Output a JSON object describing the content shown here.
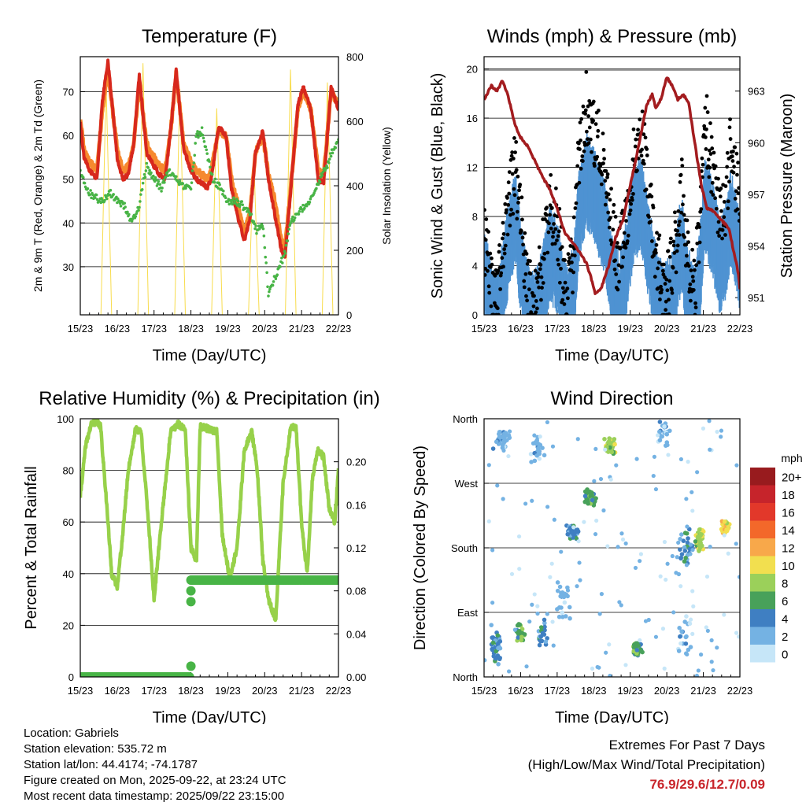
{
  "x_ticks": [
    "15/23",
    "16/23",
    "17/23",
    "18/23",
    "19/23",
    "20/23",
    "21/23",
    "22/23"
  ],
  "chart_data": [
    {
      "type": "line",
      "title": "Temperature (F)",
      "xlabel": "Time (Day/UTC)",
      "ylabel": "2m & 9m T (Red, Orange) & 2m Td (Green)",
      "ylabel_right": "Solar Insolation (Yellow)",
      "ylim": [
        19,
        78
      ],
      "yticks": [
        30,
        40,
        50,
        60,
        70
      ],
      "ylim_right": [
        0,
        800
      ],
      "yticks_right": [
        0,
        200,
        400,
        600,
        800
      ],
      "x_days": [
        0,
        7
      ],
      "grid": true,
      "colors": {
        "t2m": "#d7281d",
        "t9m": "#f6892e",
        "td": "#48b446",
        "solar": "#f8dc4c"
      },
      "series": [
        {
          "name": "2m T",
          "axis": "left",
          "x": [
            0.0,
            0.1,
            0.25,
            0.45,
            0.6,
            0.75,
            0.9,
            1.0,
            1.15,
            1.3,
            1.45,
            1.6,
            1.8,
            2.0,
            2.15,
            2.3,
            2.45,
            2.6,
            2.8,
            3.0,
            3.15,
            3.3,
            3.45,
            3.55,
            3.75,
            3.95,
            4.1,
            4.25,
            4.45,
            4.6,
            4.75,
            4.95,
            5.1,
            5.25,
            5.45,
            5.55,
            5.75,
            5.9,
            6.05,
            6.25,
            6.45,
            6.6,
            6.8,
            7.0
          ],
          "values": [
            63,
            55,
            52,
            50,
            68,
            77,
            64,
            55,
            50,
            51,
            58,
            74,
            56,
            53,
            51,
            50,
            61,
            75,
            57,
            52,
            50,
            49,
            48,
            50,
            62,
            60,
            48,
            42,
            36,
            41,
            56,
            61,
            50,
            43,
            34,
            32,
            52,
            67,
            71,
            66,
            50,
            49,
            71,
            66
          ]
        },
        {
          "name": "9m T",
          "axis": "left",
          "x": [
            0.0,
            0.1,
            0.25,
            0.45,
            0.6,
            0.75,
            0.9,
            1.0,
            1.15,
            1.3,
            1.45,
            1.6,
            1.8,
            2.0,
            2.15,
            2.3,
            2.45,
            2.6,
            2.8,
            3.0,
            3.15,
            3.3,
            3.45,
            3.55,
            3.75,
            3.95,
            4.1,
            4.25,
            4.45,
            4.6,
            4.75,
            4.95,
            5.1,
            5.25,
            5.45,
            5.55,
            5.75,
            5.9,
            6.05,
            6.25,
            6.45,
            6.6,
            6.8,
            7.0
          ],
          "values": [
            64,
            57,
            54,
            52,
            66,
            75,
            64,
            57,
            52,
            53,
            58,
            72,
            58,
            55,
            53,
            52,
            61,
            74,
            58,
            54,
            52,
            51,
            50,
            52,
            61,
            60,
            50,
            45,
            38,
            42,
            56,
            60,
            51,
            46,
            36,
            34,
            52,
            66,
            70,
            66,
            52,
            51,
            70,
            67
          ]
        },
        {
          "name": "2m Td",
          "axis": "left",
          "x": [
            0.0,
            0.15,
            0.35,
            0.6,
            0.8,
            1.0,
            1.2,
            1.4,
            1.6,
            1.8,
            2.0,
            2.2,
            2.4,
            2.6,
            2.8,
            3.0,
            3.15,
            3.3,
            3.45,
            3.6,
            3.8,
            4.0,
            4.2,
            4.4,
            4.6,
            4.8,
            4.95,
            5.1,
            5.25,
            5.4,
            5.55,
            5.7,
            5.9,
            6.1,
            6.3,
            6.5,
            6.7,
            6.85,
            7.0
          ],
          "values": [
            52,
            48,
            46,
            45,
            47,
            45,
            44,
            40,
            44,
            53,
            50,
            48,
            52,
            50,
            48,
            48,
            60,
            61,
            55,
            50,
            48,
            45,
            45,
            44,
            42,
            38,
            40,
            24,
            27,
            30,
            33,
            40,
            42,
            44,
            46,
            50,
            53,
            57,
            59
          ]
        },
        {
          "name": "Solar",
          "axis": "right",
          "x": [
            0.0,
            0.56,
            0.7,
            0.85,
            1.0,
            1.56,
            1.7,
            1.85,
            2.0,
            2.56,
            2.7,
            2.85,
            3.0,
            3.56,
            3.7,
            3.85,
            4.0,
            4.56,
            4.7,
            4.85,
            5.0,
            5.56,
            5.7,
            5.85,
            6.0,
            6.56,
            6.7,
            6.85,
            7.0
          ],
          "values": [
            0,
            0,
            720,
            0,
            0,
            0,
            780,
            0,
            0,
            0,
            700,
            0,
            0,
            0,
            640,
            0,
            0,
            0,
            500,
            0,
            0,
            0,
            760,
            0,
            0,
            0,
            720,
            0,
            0
          ]
        }
      ]
    },
    {
      "type": "line",
      "title": "Winds (mph) & Pressure (mb)",
      "xlabel": "Time (Day/UTC)",
      "ylabel": "Sonic Wind & Gust (Blue, Black)",
      "ylabel_right": "Station Pressure (Maroon)",
      "ylim": [
        0,
        21
      ],
      "yticks": [
        0,
        4,
        8,
        12,
        16,
        20
      ],
      "ylim_right": [
        950.0,
        965.0
      ],
      "yticks_right": [
        951,
        954,
        957,
        960,
        963
      ],
      "x_days": [
        0,
        7
      ],
      "grid": true,
      "colors": {
        "wind": "#4f93d2",
        "gust": "#000000",
        "pressure": "#a31c1f"
      },
      "series": [
        {
          "name": "Sonic Wind",
          "axis": "left",
          "x": [
            0.0,
            0.1,
            0.2,
            0.35,
            0.5,
            0.65,
            0.85,
            1.0,
            1.15,
            1.3,
            1.45,
            1.6,
            1.8,
            2.0,
            2.15,
            2.3,
            2.45,
            2.6,
            2.8,
            2.95,
            3.1,
            3.3,
            3.5,
            3.7,
            3.9,
            4.1,
            4.3,
            4.5,
            4.7,
            4.9,
            5.1,
            5.25,
            5.4,
            5.55,
            5.75,
            5.9,
            6.05,
            6.25,
            6.45,
            6.6,
            6.75,
            6.9,
            7.0
          ],
          "values": [
            4,
            3,
            1,
            0.5,
            3,
            6,
            9,
            5,
            2,
            0.5,
            1,
            3,
            6,
            5,
            2,
            1,
            3,
            9,
            12,
            11,
            10,
            8,
            4,
            2,
            5,
            9,
            10,
            6,
            3,
            1,
            2,
            4,
            7,
            3,
            1,
            4,
            10,
            8,
            5,
            6,
            9,
            7,
            5
          ]
        },
        {
          "name": "Gust",
          "axis": "left",
          "x": [
            0.0,
            0.1,
            0.2,
            0.35,
            0.5,
            0.65,
            0.85,
            1.0,
            1.15,
            1.3,
            1.45,
            1.6,
            1.8,
            2.0,
            2.15,
            2.3,
            2.45,
            2.6,
            2.8,
            2.95,
            3.1,
            3.3,
            3.5,
            3.7,
            3.9,
            4.1,
            4.3,
            4.5,
            4.7,
            4.9,
            5.1,
            5.25,
            5.4,
            5.55,
            5.75,
            5.9,
            6.05,
            6.25,
            6.45,
            6.6,
            6.75,
            6.9,
            7.0
          ],
          "values": [
            7,
            6,
            3,
            2,
            6,
            10,
            13,
            9,
            4,
            2,
            3,
            6,
            10,
            9,
            4,
            3,
            6,
            14,
            18,
            16,
            15,
            13,
            8,
            5,
            9,
            14,
            16,
            11,
            6,
            3,
            4,
            7,
            12,
            6,
            3,
            8,
            17,
            13,
            9,
            10,
            15,
            12,
            9
          ]
        },
        {
          "name": "Pressure",
          "axis": "right",
          "x": [
            0.0,
            0.2,
            0.35,
            0.5,
            0.65,
            0.85,
            1.0,
            1.2,
            1.4,
            1.6,
            1.8,
            2.0,
            2.2,
            2.5,
            2.8,
            2.95,
            3.05,
            3.2,
            3.4,
            3.6,
            3.8,
            4.0,
            4.2,
            4.45,
            4.6,
            4.7,
            4.85,
            5.0,
            5.15,
            5.3,
            5.45,
            5.6,
            5.8,
            5.95,
            6.1,
            6.3,
            6.5,
            6.7,
            6.85,
            6.95,
            7.0
          ],
          "values": [
            962.5,
            963.3,
            963.0,
            963.6,
            962.8,
            961.0,
            960.3,
            959.8,
            958.9,
            958.0,
            957.3,
            956.2,
            954.8,
            954.0,
            953.0,
            952.0,
            951.2,
            951.5,
            952.8,
            954.5,
            955.5,
            957.5,
            959.5,
            962.2,
            962.8,
            962.0,
            962.6,
            963.8,
            963.3,
            962.5,
            962.8,
            962.3,
            959.5,
            957.5,
            956.2,
            956.0,
            955.5,
            955.0,
            953.5,
            952.5,
            951.5
          ]
        }
      ]
    },
    {
      "type": "line",
      "title": "Relative Humidity (%) & Precipitation (in)",
      "xlabel": "Time (Day/UTC)",
      "ylabel": "Percent & Total Rainfall",
      "ylim": [
        0,
        100
      ],
      "yticks": [
        0,
        20,
        40,
        60,
        80,
        100
      ],
      "ylim_right": [
        0.0,
        0.24
      ],
      "yticks_right": [
        "0.00",
        "0.04",
        "0.08",
        "0.12",
        "0.16",
        "0.20"
      ],
      "x_days": [
        0,
        7
      ],
      "grid": true,
      "colors": {
        "rh": "#97d14a",
        "precip": "#48b446"
      },
      "series": [
        {
          "name": "RH",
          "axis": "left",
          "x": [
            0.0,
            0.15,
            0.3,
            0.45,
            0.55,
            0.7,
            0.85,
            1.0,
            1.15,
            1.3,
            1.5,
            1.65,
            1.85,
            2.0,
            2.2,
            2.45,
            2.65,
            2.85,
            3.0,
            3.15,
            3.25,
            3.5,
            3.7,
            3.85,
            4.05,
            4.25,
            4.45,
            4.65,
            4.8,
            4.95,
            5.1,
            5.3,
            5.5,
            5.7,
            5.85,
            6.0,
            6.15,
            6.3,
            6.45,
            6.6,
            6.75,
            6.9,
            7.0
          ],
          "values": [
            70,
            90,
            98,
            99,
            97,
            70,
            40,
            35,
            55,
            80,
            96,
            95,
            60,
            30,
            60,
            95,
            98,
            96,
            50,
            45,
            97,
            96,
            95,
            55,
            38,
            50,
            88,
            95,
            80,
            45,
            30,
            22,
            75,
            96,
            97,
            60,
            40,
            78,
            88,
            85,
            65,
            60,
            80
          ]
        },
        {
          "name": "Precip",
          "axis": "right",
          "x": [
            0.0,
            0.5,
            1.0,
            1.5,
            2.0,
            2.5,
            3.0,
            3.0,
            3.0,
            3.0,
            3.0,
            3.5,
            4.0,
            4.5,
            5.0,
            5.5,
            6.0,
            6.5,
            7.0
          ],
          "values": [
            0.0,
            0.0,
            0.0,
            0.0,
            0.0,
            0.0,
            0.0,
            0.01,
            0.07,
            0.08,
            0.09,
            0.09,
            0.09,
            0.09,
            0.09,
            0.09,
            0.09,
            0.09,
            0.09
          ]
        }
      ]
    },
    {
      "type": "scatter",
      "title": "Wind Direction",
      "xlabel": "Time (Day/UTC)",
      "ylabel": "Direction (Colored By Speed)",
      "ylim": [
        0,
        360
      ],
      "ytick_values": [
        0,
        90,
        180,
        270,
        360
      ],
      "ytick_labels": [
        "North",
        "East",
        "South",
        "West",
        "North"
      ],
      "x_days": [
        0,
        7
      ],
      "grid": true,
      "legend": {
        "title": "mph",
        "labels": [
          "20+",
          "18",
          "16",
          "14",
          "12",
          "10",
          "8",
          "6",
          "4",
          "2",
          "0"
        ],
        "colors": [
          "#981b1e",
          "#c6242b",
          "#e2382a",
          "#f3682a",
          "#f8a84a",
          "#f2df4f",
          "#9bd05a",
          "#48a15a",
          "#3f7fc2",
          "#74b2e3",
          "#c6e6f8"
        ]
      },
      "clusters": [
        {
          "x": 0.3,
          "deg": 40,
          "speed": 4,
          "n": 40,
          "xs": 0.25,
          "ds": 40
        },
        {
          "x": 0.45,
          "deg": 330,
          "speed": 2,
          "n": 35,
          "xs": 0.3,
          "ds": 25
        },
        {
          "x": 1.0,
          "deg": 60,
          "speed": 6,
          "n": 30,
          "xs": 0.15,
          "ds": 20
        },
        {
          "x": 1.6,
          "deg": 60,
          "speed": 4,
          "n": 20,
          "xs": 0.2,
          "ds": 25
        },
        {
          "x": 1.5,
          "deg": 320,
          "speed": 2,
          "n": 25,
          "xs": 0.3,
          "ds": 30
        },
        {
          "x": 2.4,
          "deg": 200,
          "speed": 4,
          "n": 45,
          "xs": 0.25,
          "ds": 15
        },
        {
          "x": 2.9,
          "deg": 250,
          "speed": 6,
          "n": 40,
          "xs": 0.2,
          "ds": 15
        },
        {
          "x": 3.45,
          "deg": 320,
          "speed": 8,
          "n": 55,
          "xs": 0.18,
          "ds": 15
        },
        {
          "x": 2.2,
          "deg": 110,
          "speed": 2,
          "n": 25,
          "xs": 0.3,
          "ds": 40
        },
        {
          "x": 4.2,
          "deg": 40,
          "speed": 6,
          "n": 50,
          "xs": 0.15,
          "ds": 15
        },
        {
          "x": 4.9,
          "deg": 340,
          "speed": 2,
          "n": 20,
          "xs": 0.3,
          "ds": 20
        },
        {
          "x": 5.5,
          "deg": 180,
          "speed": 4,
          "n": 25,
          "xs": 0.25,
          "ds": 40
        },
        {
          "x": 5.9,
          "deg": 190,
          "speed": 8,
          "n": 45,
          "xs": 0.15,
          "ds": 20
        },
        {
          "x": 6.6,
          "deg": 210,
          "speed": 10,
          "n": 55,
          "xs": 0.15,
          "ds": 12
        },
        {
          "x": 5.5,
          "deg": 60,
          "speed": 2,
          "n": 20,
          "xs": 0.3,
          "ds": 50
        }
      ]
    }
  ],
  "footer": {
    "location": "Location: Gabriels",
    "elevation": "Station elevation: 535.72 m",
    "latlon": "Station lat/lon: 44.4174; -74.1787",
    "created": "Figure created on Mon, 2025-09-22, at 23:24 UTC",
    "recent": "Most recent data timestamp: 2025/09/22 23:15:00"
  },
  "extremes": {
    "title": "Extremes For Past 7 Days",
    "subtitle": "(High/Low/Max Wind/Total Precipitation)",
    "values": "76.9/29.6/12.7/0.09"
  }
}
